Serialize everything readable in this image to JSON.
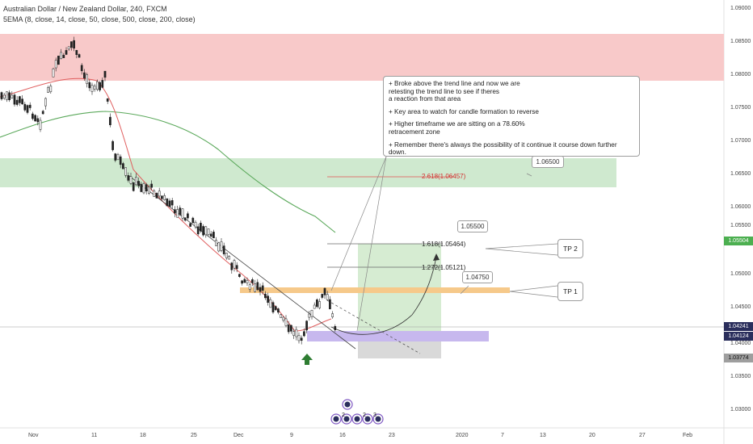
{
  "header": {
    "title": "Australian Dollar / New Zealand Dollar, 240, FXCM",
    "indicator": "5EMA (8, close, 14, close, 50, close, 500, close, 200, close)"
  },
  "annotation": {
    "lines": [
      "+ Broke above the trend line and now we are\nretesting the trend line to see if theres\na reaction from that area",
      "+ Key area to watch for candle formation to reverse",
      "+ Higher timeframe we are sitting on a 78.60%\nretracement zone",
      "+ Remember there's always the possibility of it continue it course down further down."
    ]
  },
  "callouts": {
    "c1": "1.06500",
    "c2": "1.05500",
    "c3": "1.04750"
  },
  "targets": {
    "tp1": "TP 1",
    "tp2": "TP 2"
  },
  "fib_levels": {
    "f1": "2.618(1.06457)",
    "f2": "1.618(1.05464)",
    "f3": "1.272(1.05121)"
  },
  "y_axis_labels": [
    "1.09000",
    "1.08500",
    "1.08000",
    "1.07500",
    "1.07000",
    "1.06500",
    "1.06000",
    "1.05500",
    "1.05000",
    "1.04500",
    "1.04000",
    "1.03500",
    "1.03000"
  ],
  "price_tags": {
    "current": "1.05504",
    "p2": "1.04241",
    "p3": "1.04124",
    "p4": "1.03774"
  },
  "x_axis_labels": [
    "Nov",
    "11",
    "18",
    "25",
    "Dec",
    "9",
    "16",
    "23",
    "2020",
    "7",
    "13",
    "20",
    "27",
    "Feb"
  ],
  "event_badges": [
    "2",
    "2",
    "3"
  ],
  "colors": {
    "up": "#333333",
    "down": "#333333",
    "resistance_zone": "#f8c9c9",
    "support_zone": "#cfe9cf",
    "key_zone": "#f6c98a",
    "buy_zone": "#c7b8ee",
    "target_zone": "#d6ecd2",
    "stop_zone": "#d9d9d9",
    "ema_green": "#5aa85a",
    "ema_red": "#e06060",
    "price_green": "#4caf50",
    "price_navy": "#2a2e5c",
    "price_gray": "#6b6b6b"
  }
}
